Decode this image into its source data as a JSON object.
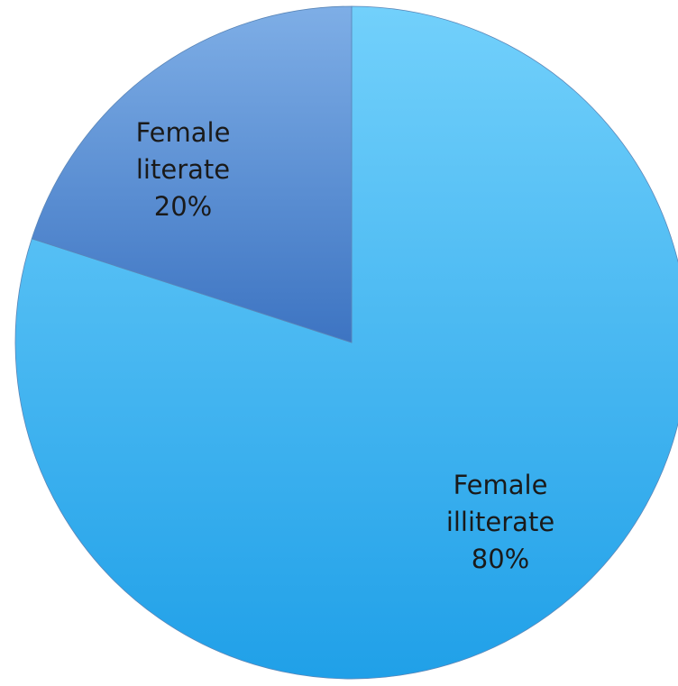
{
  "chart_data": {
    "type": "pie",
    "slices": [
      {
        "label_lines": [
          "Female",
          "illiterate"
        ],
        "pct_text": "80%",
        "value": 80,
        "color_top": "#72d0fb",
        "color_bottom": "#20a0e8"
      },
      {
        "label_lines": [
          "Female",
          "literate"
        ],
        "pct_text": "20%",
        "value": 20,
        "color_top": "#7eaee6",
        "color_bottom": "#3d74c2"
      }
    ],
    "start_angle_deg": 0,
    "direction": "clockwise"
  }
}
